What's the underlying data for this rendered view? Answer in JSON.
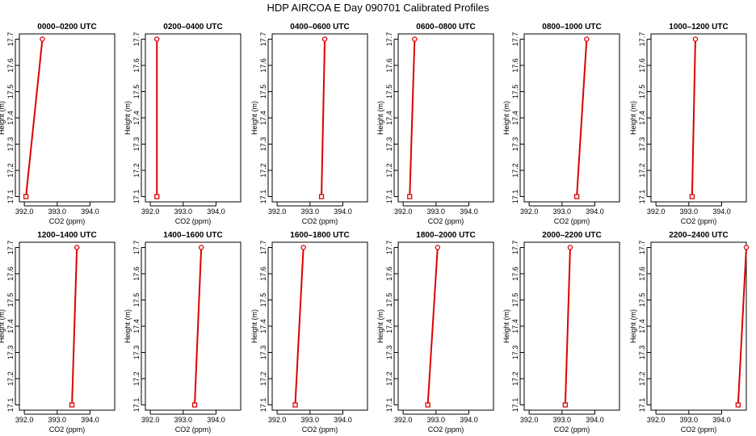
{
  "title": "HDP AIRCOA E  Day 090701  Calibrated Profiles",
  "chart_data": {
    "type": "line",
    "xlabel": "CO2 (ppm)",
    "ylabel": "Height (m)",
    "xlim": [
      391.85,
      394.75
    ],
    "ylim": [
      17.08,
      17.72
    ],
    "x_ticks": [
      "392.0",
      "393.0",
      "394.0"
    ],
    "x_tick_values": [
      392.0,
      393.0,
      394.0
    ],
    "y_ticks": [
      "17.1",
      "17.2",
      "17.3",
      "17.4",
      "17.5",
      "17.6",
      "17.7"
    ],
    "y_tick_values": [
      17.1,
      17.2,
      17.3,
      17.4,
      17.5,
      17.6,
      17.7
    ],
    "series_color": "#dd0000",
    "panels": [
      {
        "title": "0000–0200 UTC",
        "points": [
          {
            "x": 392.05,
            "y": 17.1
          },
          {
            "x": 392.55,
            "y": 17.7
          }
        ]
      },
      {
        "title": "0200–0400 UTC",
        "points": [
          {
            "x": 392.2,
            "y": 17.1
          },
          {
            "x": 392.2,
            "y": 17.7
          }
        ]
      },
      {
        "title": "0400–0600 UTC",
        "points": [
          {
            "x": 393.35,
            "y": 17.1
          },
          {
            "x": 393.45,
            "y": 17.7
          }
        ]
      },
      {
        "title": "0600–0800 UTC",
        "points": [
          {
            "x": 392.2,
            "y": 17.1
          },
          {
            "x": 392.35,
            "y": 17.7
          }
        ]
      },
      {
        "title": "0800–1000 UTC",
        "points": [
          {
            "x": 393.45,
            "y": 17.1
          },
          {
            "x": 393.75,
            "y": 17.7
          }
        ]
      },
      {
        "title": "1000–1200 UTC",
        "points": [
          {
            "x": 393.1,
            "y": 17.1
          },
          {
            "x": 393.2,
            "y": 17.7
          }
        ]
      },
      {
        "title": "1200–1400 UTC",
        "points": [
          {
            "x": 393.45,
            "y": 17.1
          },
          {
            "x": 393.6,
            "y": 17.7
          }
        ]
      },
      {
        "title": "1400–1600 UTC",
        "points": [
          {
            "x": 393.35,
            "y": 17.1
          },
          {
            "x": 393.55,
            "y": 17.7
          }
        ]
      },
      {
        "title": "1600–1800 UTC",
        "points": [
          {
            "x": 392.55,
            "y": 17.1
          },
          {
            "x": 392.8,
            "y": 17.7
          }
        ]
      },
      {
        "title": "1800–2000 UTC",
        "points": [
          {
            "x": 392.75,
            "y": 17.1
          },
          {
            "x": 393.05,
            "y": 17.7
          }
        ]
      },
      {
        "title": "2000–2200 UTC",
        "points": [
          {
            "x": 393.1,
            "y": 17.1
          },
          {
            "x": 393.25,
            "y": 17.7
          }
        ]
      },
      {
        "title": "2200–2400 UTC",
        "points": [
          {
            "x": 394.5,
            "y": 17.1
          },
          {
            "x": 394.75,
            "y": 17.7
          }
        ]
      }
    ]
  }
}
